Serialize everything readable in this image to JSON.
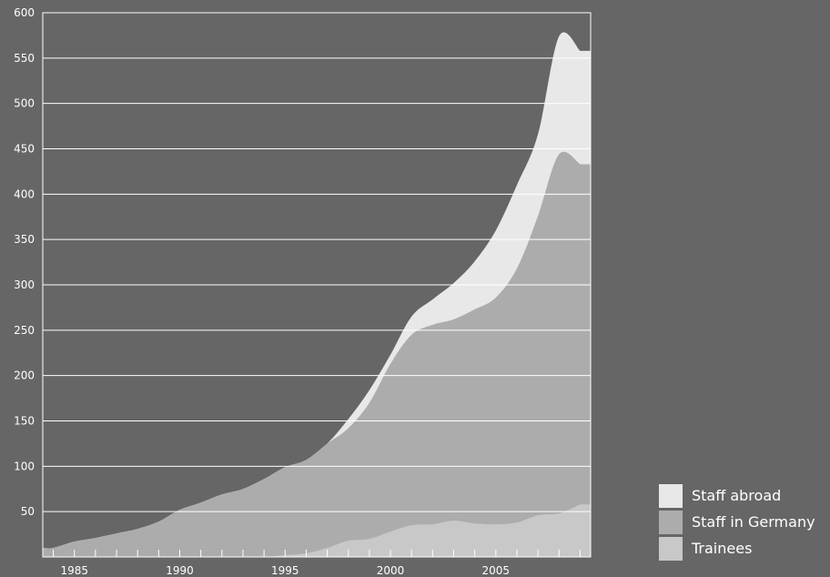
{
  "chart_data": {
    "type": "area",
    "stacked": true,
    "x": [
      1983.5,
      1984,
      1985,
      1986,
      1987,
      1988,
      1989,
      1990,
      1991,
      1992,
      1993,
      1994,
      1995,
      1996,
      1997,
      1998,
      1999,
      2000,
      2001,
      2002,
      2003,
      2004,
      2005,
      2006,
      2007,
      2008,
      2009
    ],
    "series": [
      {
        "name": "Trainees",
        "color": "#c8c8c8",
        "values": [
          0,
          0,
          0,
          0,
          0,
          0,
          0,
          0,
          0,
          0,
          0,
          0,
          2,
          4,
          10,
          18,
          20,
          28,
          35,
          36,
          40,
          37,
          36,
          38,
          46,
          48,
          58
        ]
      },
      {
        "name": "Staff in Germany",
        "color": "#acacac",
        "values": [
          10,
          10,
          17,
          21,
          26,
          31,
          39,
          52,
          60,
          69,
          75,
          86,
          97,
          103,
          115,
          124,
          150,
          185,
          210,
          220,
          222,
          236,
          250,
          280,
          330,
          396,
          375
        ]
      },
      {
        "name": "Staff abroad",
        "color": "#e8e8e8",
        "values": [
          0,
          0,
          0,
          0,
          0,
          0,
          0,
          0,
          0,
          0,
          0,
          0,
          0,
          0,
          0,
          10,
          14,
          10,
          20,
          28,
          40,
          53,
          74,
          92,
          90,
          130,
          125
        ]
      }
    ],
    "ylim": [
      0,
      600
    ],
    "y_ticks": [
      "50",
      "100",
      "150",
      "200",
      "250",
      "300",
      "350",
      "400",
      "450",
      "500",
      "550",
      "600"
    ],
    "xlim": [
      1983.5,
      2009.5
    ],
    "x_ticks": [
      "1985",
      "1990",
      "1995",
      "2000",
      "2005"
    ],
    "grid": true,
    "legend_position": "bottom-right"
  }
}
